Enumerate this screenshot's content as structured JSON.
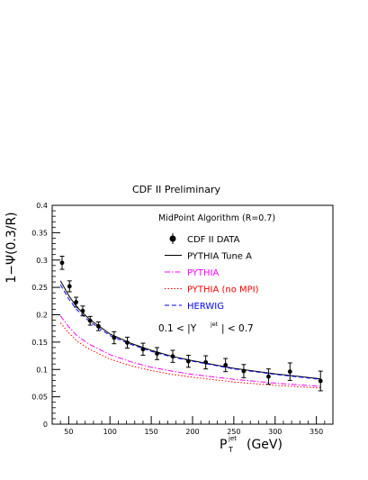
{
  "chart_data": {
    "type": "line",
    "title": "CDF II Preliminary",
    "xlabel_main": "P",
    "xlabel_sub": "T",
    "xlabel_sup": "jet",
    "xlabel_unit": "(GeV)",
    "ylabel": "1−Ψ(0.3/R)",
    "xlim": [
      30,
      370
    ],
    "ylim": [
      0,
      0.4
    ],
    "x_ticks": [
      50,
      100,
      150,
      200,
      250,
      300,
      350
    ],
    "y_ticks": [
      0,
      0.05,
      0.1,
      0.15,
      0.2,
      0.25,
      0.3,
      0.35,
      0.4
    ],
    "y_tick_labels": [
      "0",
      "0.05",
      "0.1",
      "0.15",
      "0.2",
      "0.25",
      "0.3",
      "0.35",
      "0.4"
    ],
    "annotation_algorithm": "MidPoint Algorithm (R=0.7)",
    "annotation_rapidity_left": "0.1 < |Y",
    "annotation_rapidity_sup": "jet",
    "annotation_rapidity_right": "| < 0.7",
    "data_series": {
      "name": "CDF II DATA",
      "color": "#000000",
      "x": [
        42,
        51,
        59,
        67,
        76,
        86,
        105,
        121,
        140,
        157,
        176,
        195,
        216,
        240,
        262,
        292,
        318,
        355
      ],
      "y": [
        0.295,
        0.252,
        0.223,
        0.207,
        0.189,
        0.179,
        0.158,
        0.149,
        0.137,
        0.129,
        0.124,
        0.115,
        0.113,
        0.108,
        0.097,
        0.087,
        0.096,
        0.079
      ],
      "err": [
        0.012,
        0.01,
        0.009,
        0.009,
        0.008,
        0.008,
        0.011,
        0.01,
        0.011,
        0.011,
        0.011,
        0.011,
        0.012,
        0.012,
        0.012,
        0.014,
        0.016,
        0.018
      ]
    },
    "series": [
      {
        "name": "PYTHIA Tune A",
        "color": "#000000",
        "style": "solid",
        "x": [
          40,
          50,
          60,
          75,
          100,
          125,
          150,
          175,
          200,
          250,
          300,
          355
        ],
        "y": [
          0.262,
          0.235,
          0.214,
          0.192,
          0.165,
          0.148,
          0.135,
          0.124,
          0.116,
          0.102,
          0.092,
          0.083
        ]
      },
      {
        "name": "PYTHIA",
        "color": "#ff00ff",
        "style": "dashdot",
        "x": [
          40,
          50,
          60,
          75,
          100,
          125,
          150,
          175,
          200,
          250,
          300,
          355
        ],
        "y": [
          0.198,
          0.178,
          0.162,
          0.146,
          0.127,
          0.114,
          0.104,
          0.097,
          0.091,
          0.082,
          0.075,
          0.069
        ]
      },
      {
        "name": "PYTHIA (no MPI)",
        "color": "#ff0000",
        "style": "dotted",
        "x": [
          40,
          50,
          60,
          75,
          100,
          125,
          150,
          175,
          200,
          250,
          300,
          355
        ],
        "y": [
          0.185,
          0.167,
          0.152,
          0.137,
          0.119,
          0.107,
          0.098,
          0.091,
          0.086,
          0.077,
          0.071,
          0.066
        ]
      },
      {
        "name": "HERWIG",
        "color": "#0000ff",
        "style": "dashed",
        "x": [
          40,
          50,
          60,
          75,
          100,
          125,
          150,
          175,
          200,
          250,
          300,
          355
        ],
        "y": [
          0.255,
          0.229,
          0.209,
          0.188,
          0.162,
          0.146,
          0.133,
          0.123,
          0.115,
          0.101,
          0.091,
          0.082
        ]
      }
    ],
    "legend": [
      {
        "label": "CDF II DATA",
        "color": "#000000",
        "kind": "marker"
      },
      {
        "label": "PYTHIA Tune A",
        "color": "#000000",
        "kind": "solid"
      },
      {
        "label": "PYTHIA",
        "color": "#ff00ff",
        "kind": "dashdot"
      },
      {
        "label": "PYTHIA (no MPI)",
        "color": "#ff0000",
        "kind": "dotted"
      },
      {
        "label": "HERWIG",
        "color": "#0000ff",
        "kind": "dashed"
      }
    ]
  }
}
